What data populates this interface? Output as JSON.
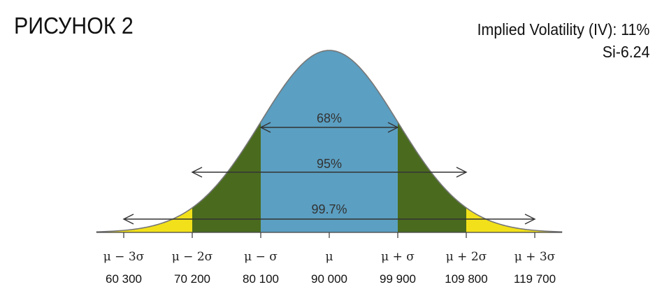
{
  "title": "РИСУНОК 2",
  "info": {
    "line1": "Implied Volatility (IV): 11%",
    "line2": "Si-6.24"
  },
  "chart_data": {
    "type": "area",
    "title": "",
    "xlabel": "",
    "ylabel": "",
    "distribution": "normal",
    "mean": 90000,
    "sigma": 9900,
    "x_ticks": [
      {
        "symbol": "μ − 3σ",
        "value": "60 300",
        "x": 60300
      },
      {
        "symbol": "μ − 2σ",
        "value": "70 200",
        "x": 70200
      },
      {
        "symbol": "μ − σ",
        "value": "80 100",
        "x": 80100
      },
      {
        "symbol": "μ",
        "value": "90 000",
        "x": 90000
      },
      {
        "symbol": "μ + σ",
        "value": "99 900",
        "x": 99900
      },
      {
        "symbol": "μ + 2σ",
        "value": "109 800",
        "x": 109800
      },
      {
        "symbol": "μ + 3σ",
        "value": "119 700",
        "x": 119700
      }
    ],
    "bands": [
      {
        "label": "68%",
        "from": 80100,
        "to": 99900,
        "color": "#5b9fc2"
      },
      {
        "label": "95%",
        "from": 70200,
        "to": 109800,
        "color": "#4a6b1e"
      },
      {
        "label": "99.7%",
        "from": 60300,
        "to": 119700,
        "color": "#f2e11a"
      }
    ],
    "outline_color": "#777777",
    "grid": false,
    "legend": "none"
  }
}
